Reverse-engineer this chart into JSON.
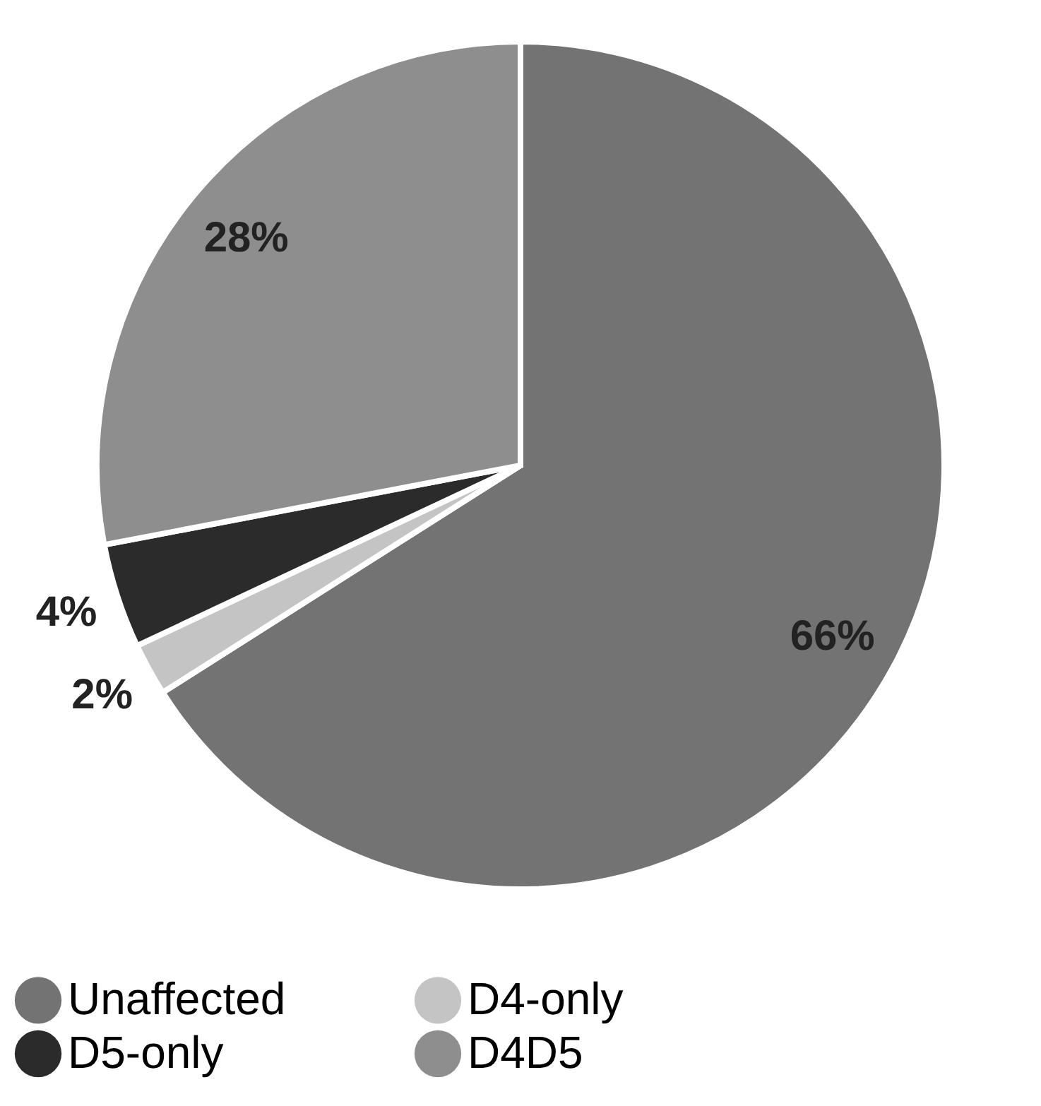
{
  "chart_data": {
    "type": "pie",
    "categories": [
      "Unaffected",
      "D4-only",
      "D5-only",
      "D4D5"
    ],
    "values": [
      66,
      2,
      4,
      28
    ],
    "value_labels": [
      "66%",
      "2%",
      "4%",
      "28%"
    ],
    "colors": [
      "#737373",
      "#c4c4c4",
      "#2b2b2b",
      "#8e8e8e"
    ],
    "legend": "bottom"
  }
}
